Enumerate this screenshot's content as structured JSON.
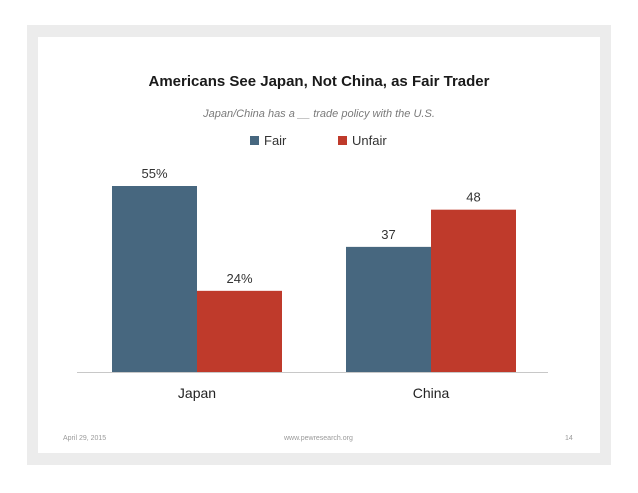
{
  "slide": {
    "date": "April 29, 2015",
    "source": "www.pewresearch.org",
    "page_number": "14"
  },
  "colors": {
    "fair": "#47677f",
    "unfair": "#bf3a2b",
    "axis": "#c8c8c8",
    "frame": "#ececec"
  },
  "chart_data": {
    "type": "bar",
    "title": "Americans See Japan, Not China, as Fair Trader",
    "subtitle": "Japan/China has a __ trade policy with the U.S.",
    "categories": [
      "Japan",
      "China"
    ],
    "series": [
      {
        "name": "Fair",
        "values": [
          55,
          37
        ],
        "labels": [
          "55%",
          "37"
        ]
      },
      {
        "name": "Unfair",
        "values": [
          24,
          48
        ],
        "labels": [
          "24%",
          "48"
        ]
      }
    ],
    "ylim": [
      0,
      55
    ],
    "grid": false,
    "legend_position": "top"
  }
}
